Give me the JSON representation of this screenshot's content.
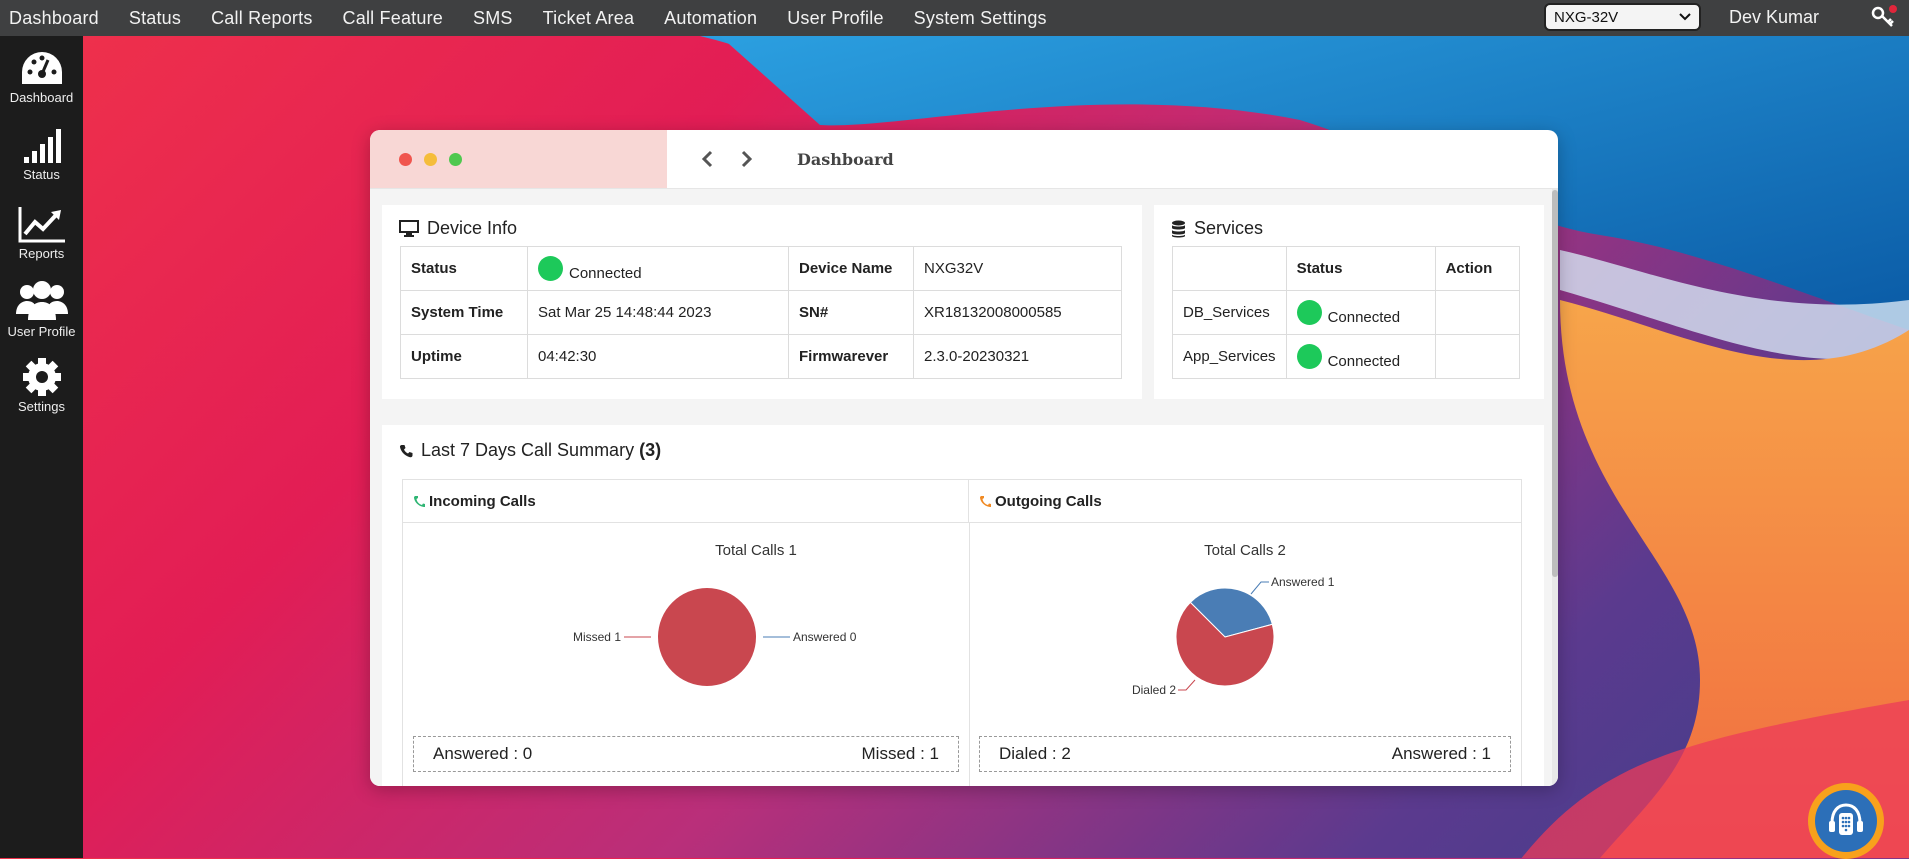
{
  "topbar": {
    "menu": [
      "Dashboard",
      "Status",
      "Call Reports",
      "Call Feature",
      "SMS",
      "Ticket Area",
      "Automation",
      "User Profile",
      "System Settings"
    ],
    "device_selected": "NXG-32V",
    "user_name": "Dev Kumar"
  },
  "sidebar": {
    "items": [
      {
        "label": "Dashboard",
        "icon": "dashboard-gauge-icon"
      },
      {
        "label": "Status",
        "icon": "signal-bars-icon"
      },
      {
        "label": "Reports",
        "icon": "trend-chart-icon"
      },
      {
        "label": "User Profile",
        "icon": "users-icon"
      },
      {
        "label": "Settings",
        "icon": "gear-icon"
      }
    ]
  },
  "window": {
    "title": "Dashboard"
  },
  "device_info": {
    "title": "Device Info",
    "rows": [
      {
        "label1": "Status",
        "value1": "Connected",
        "label2": "Device Name",
        "value2": "NXG32V"
      },
      {
        "label1": "System Time",
        "value1": "Sat Mar 25 14:48:44 2023",
        "label2": "SN#",
        "value2": "XR18132008000585"
      },
      {
        "label1": "Uptime",
        "value1": "04:42:30",
        "label2": "Firmwarever",
        "value2": "2.3.0-20230321"
      }
    ]
  },
  "services": {
    "title": "Services",
    "headers": [
      "",
      "Status",
      "Action"
    ],
    "rows": [
      {
        "name": "DB_Services",
        "status": "Connected",
        "action": ""
      },
      {
        "name": "App_Services",
        "status": "Connected",
        "action": ""
      }
    ]
  },
  "call_summary": {
    "title": "Last 7 Days Call Summary",
    "count": "(3)",
    "incoming": {
      "header": "Incoming Calls",
      "chart_title": "Total Calls 1",
      "answered_text": "Answered : 0",
      "missed_text": "Missed : 1",
      "label_missed": "Missed 1",
      "label_answered": "Answered 0"
    },
    "outgoing": {
      "header": "Outgoing Calls",
      "chart_title": "Total Calls 2",
      "dialed_text": "Dialed : 2",
      "answered_text": "Answered : 1",
      "label_answered": "Answered 1",
      "label_dialed": "Dialed 2"
    }
  },
  "colors": {
    "missed": "#c9474f",
    "answered": "#4a7db5",
    "connected": "#1dc95a",
    "topbar": "#3f4041",
    "sidebar": "#1c1c1c"
  },
  "chart_data": [
    {
      "type": "pie",
      "title": "Total Calls 1",
      "categories": [
        "Missed",
        "Answered"
      ],
      "values": [
        1,
        0
      ]
    },
    {
      "type": "pie",
      "title": "Total Calls 2",
      "categories": [
        "Dialed",
        "Answered"
      ],
      "values": [
        2,
        1
      ]
    }
  ]
}
